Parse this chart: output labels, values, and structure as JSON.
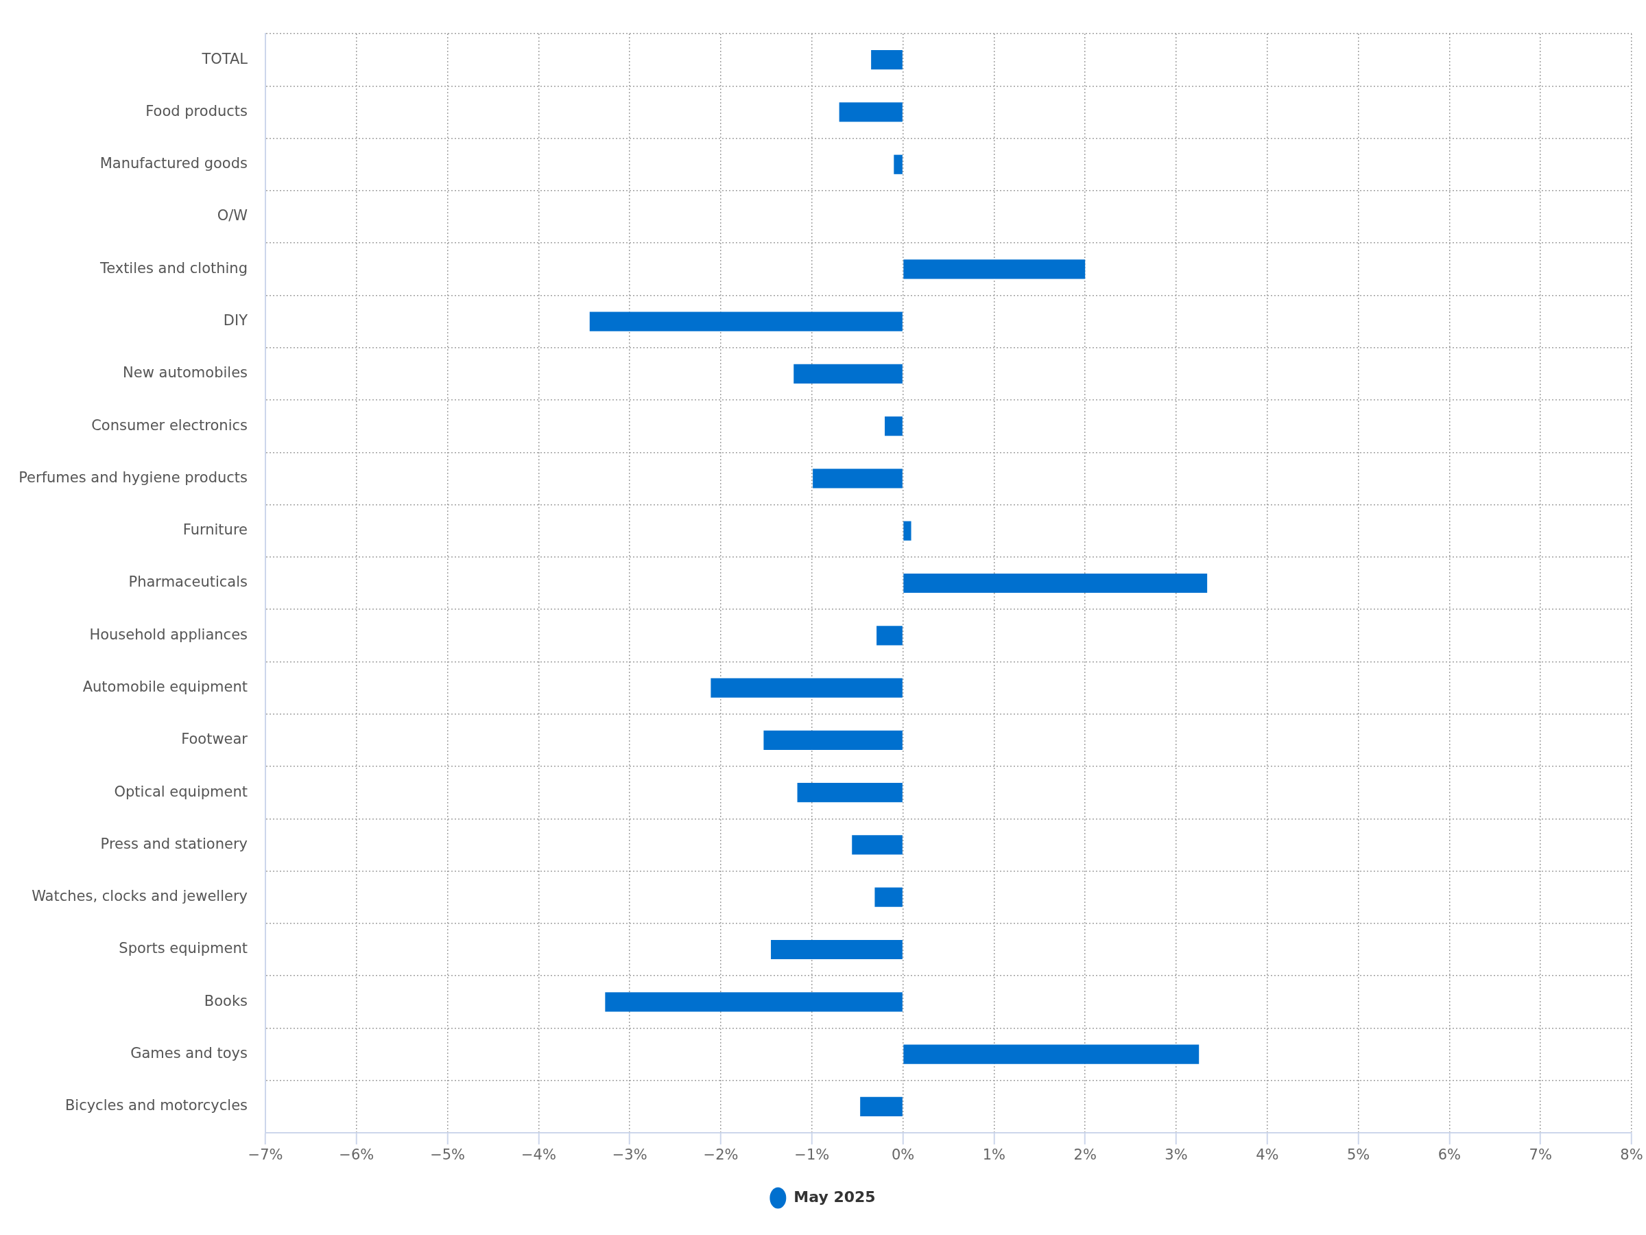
{
  "chart_data": {
    "type": "bar",
    "orientation": "horizontal",
    "categories": [
      "TOTAL",
      "Food products",
      "Manufactured goods",
      "O/W",
      "Textiles and clothing",
      "DIY",
      "New automobiles",
      "Consumer electronics",
      "Perfumes and hygiene products",
      "Furniture",
      "Pharmaceuticals",
      "Household appliances",
      "Automobile equipment",
      "Footwear",
      "Optical equipment",
      "Press and stationery",
      "Watches, clocks and jewellery",
      "Sports equipment",
      "Books",
      "Games and toys",
      "Bicycles and motorcycles"
    ],
    "series": [
      {
        "name": "May 2025",
        "color": "#0070cf",
        "values": [
          -0.35,
          -0.7,
          -0.1,
          null,
          2.0,
          -3.44,
          -1.2,
          -0.2,
          -0.99,
          0.09,
          3.34,
          -0.29,
          -2.11,
          -1.53,
          -1.16,
          -0.56,
          -0.31,
          -1.45,
          -3.27,
          3.25,
          -0.47
        ]
      }
    ],
    "xlim": [
      -7,
      8
    ],
    "xticks": [
      {
        "value": -7,
        "label": "−7%"
      },
      {
        "value": -6,
        "label": "−6%"
      },
      {
        "value": -5,
        "label": "−5%"
      },
      {
        "value": -4,
        "label": "−4%"
      },
      {
        "value": -3,
        "label": "−3%"
      },
      {
        "value": -2,
        "label": "−2%"
      },
      {
        "value": -1,
        "label": "−1%"
      },
      {
        "value": 0,
        "label": "0%"
      },
      {
        "value": 1,
        "label": "1%"
      },
      {
        "value": 2,
        "label": "2%"
      },
      {
        "value": 3,
        "label": "3%"
      },
      {
        "value": 4,
        "label": "4%"
      },
      {
        "value": 5,
        "label": "5%"
      },
      {
        "value": 6,
        "label": "6%"
      },
      {
        "value": 7,
        "label": "7%"
      },
      {
        "value": 8,
        "label": "8%"
      }
    ],
    "grid": true,
    "legend": "bottom"
  }
}
